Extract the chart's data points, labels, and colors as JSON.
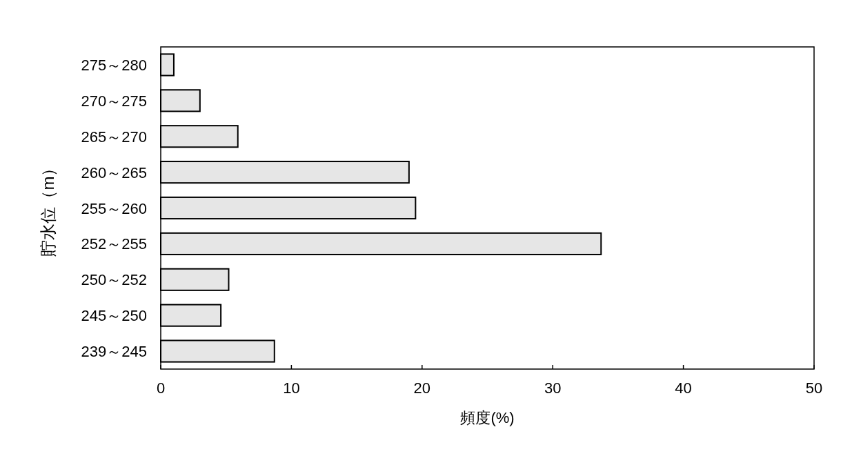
{
  "chart_data": {
    "type": "bar",
    "orientation": "horizontal",
    "xlabel": "頻度(%)",
    "ylabel": "貯水位（m）",
    "categories": [
      "275～280",
      "270～275",
      "265～270",
      "260～265",
      "255～260",
      "252～255",
      "250～252",
      "245～250",
      "239～245"
    ],
    "values": [
      1.0,
      3.0,
      5.9,
      19.0,
      19.5,
      33.7,
      5.2,
      4.6,
      8.7
    ],
    "color": "#e6e6e6",
    "xlim": [
      0,
      50
    ],
    "xticks": [
      0,
      10,
      20,
      30,
      40,
      50
    ],
    "grid": false
  }
}
